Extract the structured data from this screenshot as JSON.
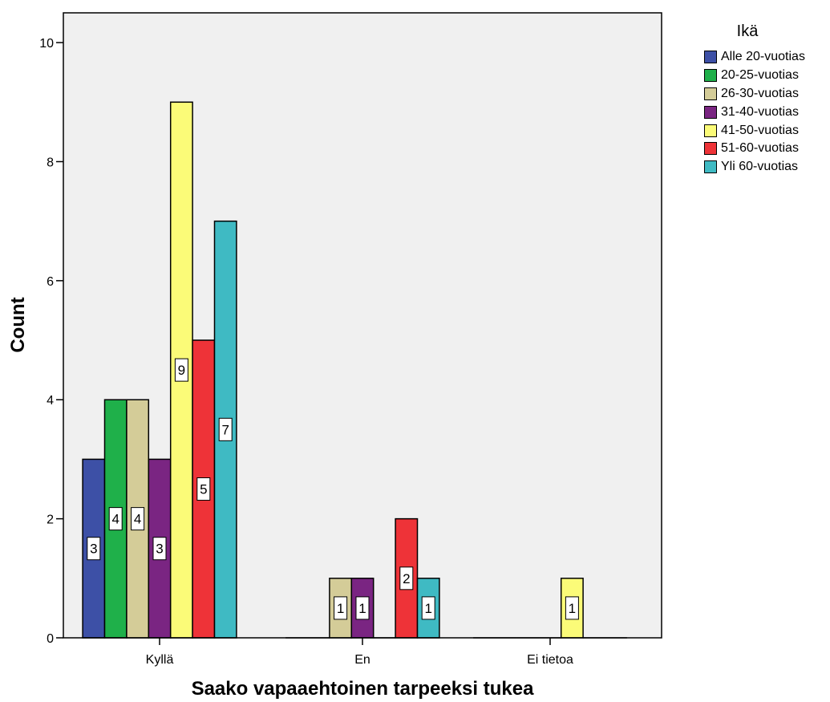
{
  "chart_data": {
    "type": "bar",
    "title": "",
    "xlabel": "Saako vapaaehtoinen tarpeeksi tukea",
    "ylabel": "Count",
    "categories": [
      "Kyllä",
      "En",
      "Ei tietoa"
    ],
    "ylim": [
      0,
      10.5
    ],
    "yticks": [
      0,
      2,
      4,
      6,
      8,
      10
    ],
    "grid": false,
    "legend": {
      "title": "Ikä",
      "placement": "right"
    },
    "series": [
      {
        "name": "Alle 20-vuotias",
        "color": "#3d50a6",
        "values": [
          3,
          0,
          0
        ]
      },
      {
        "name": "20-25-vuotias",
        "color": "#1fb04a",
        "values": [
          4,
          0,
          0
        ]
      },
      {
        "name": "26-30-vuotias",
        "color": "#d4cc98",
        "values": [
          4,
          1,
          0
        ]
      },
      {
        "name": "31-40-vuotias",
        "color": "#7a2582",
        "values": [
          3,
          1,
          0
        ]
      },
      {
        "name": "41-50-vuotias",
        "color": "#fbfb78",
        "values": [
          9,
          0,
          1
        ]
      },
      {
        "name": "51-60-vuotias",
        "color": "#ee3338",
        "values": [
          5,
          2,
          0
        ]
      },
      {
        "name": "Yli 60-vuotias",
        "color": "#3fbac3",
        "values": [
          7,
          1,
          0
        ]
      }
    ],
    "plot_background": "#f0f0f0"
  }
}
